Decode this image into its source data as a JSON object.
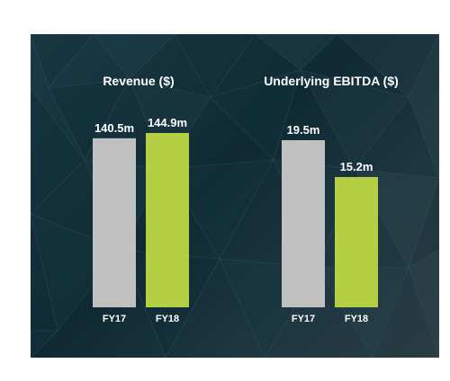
{
  "chart_data": [
    {
      "type": "bar",
      "title": "Revenue ($)",
      "categories": [
        "FY17",
        "FY18"
      ],
      "values": [
        140.5,
        144.9
      ],
      "value_labels": [
        "140.5m",
        "144.9m"
      ],
      "colors": [
        "#c0c0c0",
        "#b5cf45"
      ],
      "grid": false
    },
    {
      "type": "bar",
      "title": "Underlying EBITDA ($)",
      "categories": [
        "FY17",
        "FY18"
      ],
      "values": [
        19.5,
        15.2
      ],
      "value_labels": [
        "19.5m",
        "15.2m"
      ],
      "colors": [
        "#c0c0c0",
        "#b5cf45"
      ],
      "grid": false
    }
  ]
}
